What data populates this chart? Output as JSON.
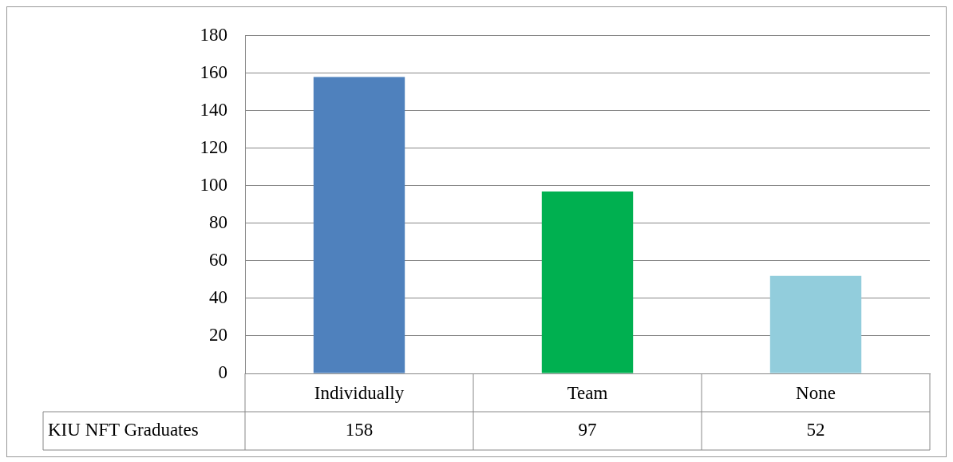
{
  "chart_data": {
    "type": "bar",
    "categories": [
      "Individually",
      "Team",
      "None"
    ],
    "series": [
      {
        "name": "KIU NFT Graduates",
        "colors": [
          "#4f81bd",
          "#00b050",
          "#92cddc"
        ],
        "values": [
          158,
          97,
          52
        ]
      }
    ],
    "ylim": [
      0,
      180
    ],
    "yticks": [
      0,
      20,
      40,
      60,
      80,
      100,
      120,
      140,
      160,
      180
    ],
    "grid": "y",
    "legend": false,
    "data_labels": true
  }
}
